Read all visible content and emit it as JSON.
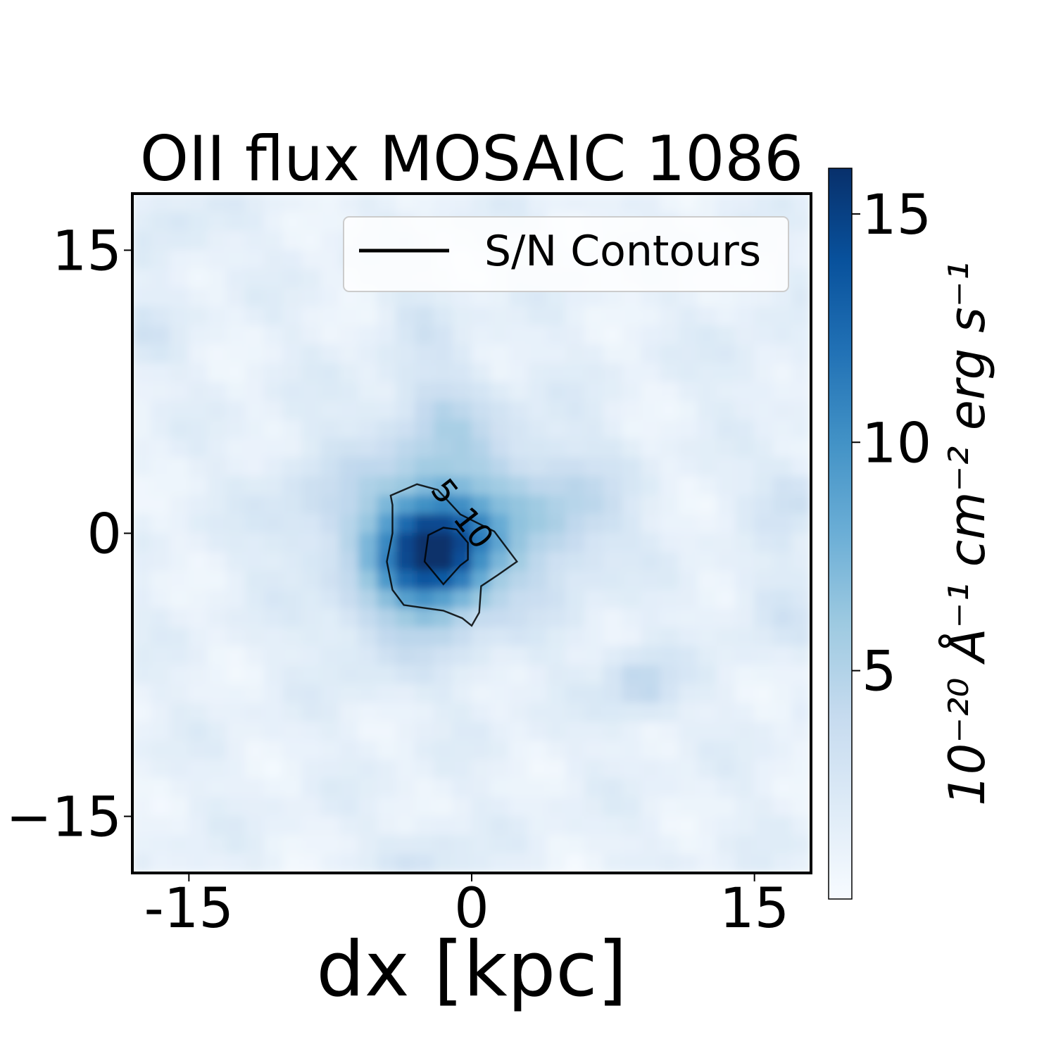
{
  "chart_data": {
    "type": "heatmap",
    "title": "OII flux MOSAIC 1086",
    "xlabel": "dx [kpc]",
    "ylabel": "",
    "xlim": [
      -18,
      18
    ],
    "ylim": [
      -18,
      18
    ],
    "x_ticks": [
      {
        "value": -15,
        "label": "-15"
      },
      {
        "value": 0,
        "label": "0"
      },
      {
        "value": 15,
        "label": "15"
      }
    ],
    "y_ticks": [
      {
        "value": 15,
        "label": "15"
      },
      {
        "value": 0,
        "label": "0"
      },
      {
        "value": -15,
        "label": "−15"
      }
    ],
    "colorbar": {
      "label": "10⁻²⁰ Å⁻¹ cm⁻² erg s⁻¹",
      "range": [
        0,
        16
      ],
      "colormap": "Blues",
      "ticks": [
        {
          "value": 5,
          "label": "5"
        },
        {
          "value": 10,
          "label": "10"
        },
        {
          "value": 15,
          "label": "15"
        }
      ]
    },
    "legend": {
      "entries": [
        "S/N Contours"
      ],
      "placement": "upper-right"
    },
    "contour_labels": [
      "5",
      "10"
    ],
    "sources": [
      {
        "x": -2.0,
        "y": -1.0,
        "amplitude": 12.5,
        "sigma": 2.0
      },
      {
        "x": -1.5,
        "y": 0.5,
        "amplitude": 4.5,
        "sigma": 4.0
      },
      {
        "x": -1.5,
        "y": 6.5,
        "amplitude": 1.6,
        "sigma": 1.6
      },
      {
        "x": 5.0,
        "y": 1.0,
        "amplitude": 2.8,
        "sigma": 2.2
      },
      {
        "x": -5.0,
        "y": -5.0,
        "amplitude": 1.2,
        "sigma": 2.0
      },
      {
        "x": 9.0,
        "y": -8.0,
        "amplitude": 3.2,
        "sigma": 1.3
      },
      {
        "x": 17.0,
        "y": 2.0,
        "amplitude": 2.2,
        "sigma": 1.3
      },
      {
        "x": 16.0,
        "y": -4.0,
        "amplitude": 1.4,
        "sigma": 1.5
      },
      {
        "x": -9.0,
        "y": 1.0,
        "amplitude": 1.2,
        "sigma": 2.0
      },
      {
        "x": -2.5,
        "y": -17.5,
        "amplitude": 1.6,
        "sigma": 1.3
      },
      {
        "x": -17.5,
        "y": 10.5,
        "amplitude": 1.2,
        "sigma": 1.2
      },
      {
        "x": -15.5,
        "y": 16.0,
        "amplitude": 1.1,
        "sigma": 1.4
      },
      {
        "x": -2.5,
        "y": 11.5,
        "amplitude": 1.2,
        "sigma": 1.2
      },
      {
        "x": 14.5,
        "y": 9.0,
        "amplitude": 0.8,
        "sigma": 1.5
      }
    ],
    "background_level": 1.3,
    "contours": [
      {
        "level": 5,
        "points": [
          [
            -4.3,
            2.0
          ],
          [
            -2.9,
            2.6
          ],
          [
            -1.8,
            2.3
          ],
          [
            -0.6,
            1.0
          ],
          [
            0.6,
            0.4
          ],
          [
            1.2,
            0.1
          ],
          [
            2.4,
            -1.5
          ],
          [
            1.4,
            -2.2
          ],
          [
            0.5,
            -2.8
          ],
          [
            0.4,
            -4.2
          ],
          [
            0.0,
            -4.9
          ],
          [
            -0.5,
            -4.5
          ],
          [
            -1.5,
            -4.1
          ],
          [
            -3.6,
            -3.8
          ],
          [
            -4.2,
            -3.0
          ],
          [
            -4.5,
            -1.5
          ],
          [
            -4.2,
            0.0
          ],
          [
            -4.2,
            1.5
          ]
        ]
      },
      {
        "level": 10,
        "points": [
          [
            -1.5,
            0.3
          ],
          [
            -2.3,
            -0.1
          ],
          [
            -2.5,
            -1.5
          ],
          [
            -1.5,
            -2.7
          ],
          [
            -0.6,
            -1.7
          ],
          [
            -0.2,
            -1.4
          ],
          [
            -0.2,
            -0.5
          ],
          [
            -0.8,
            0.2
          ]
        ]
      }
    ]
  }
}
